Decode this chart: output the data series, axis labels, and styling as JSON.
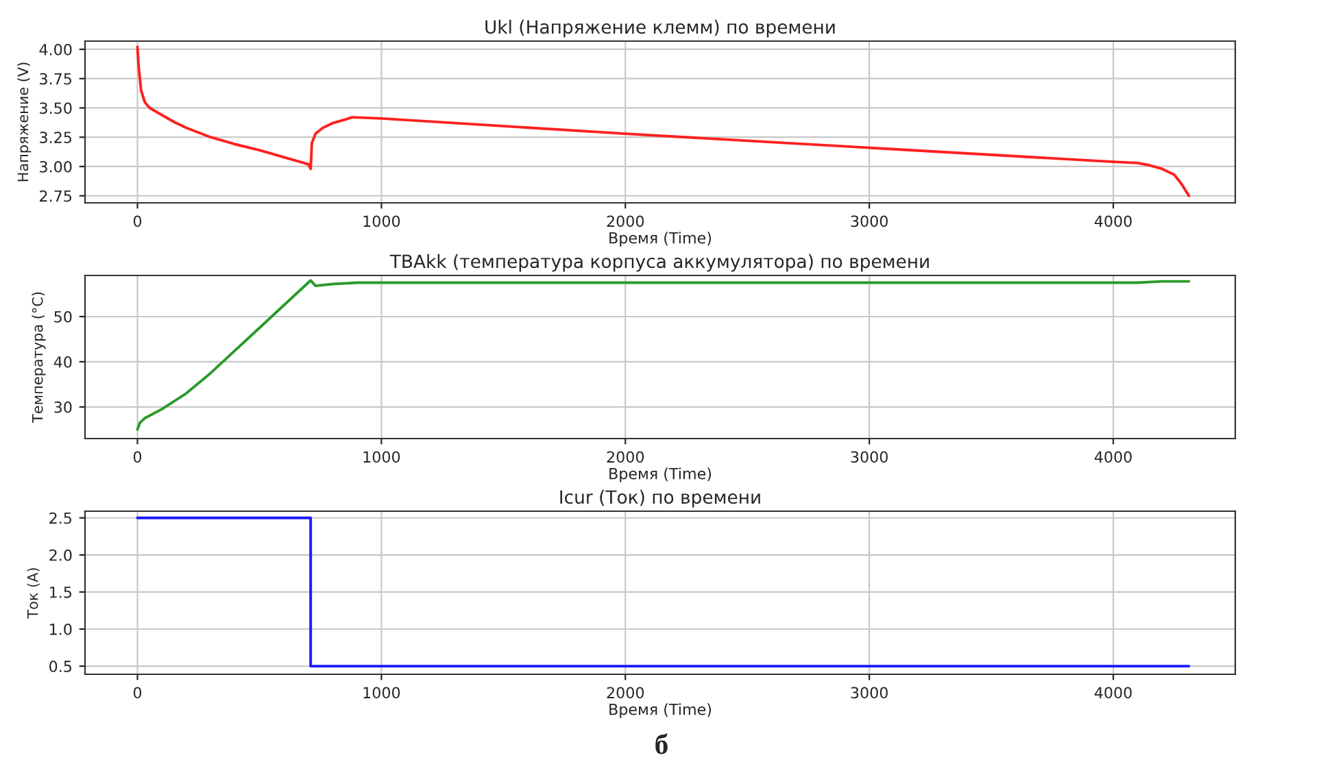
{
  "chart_data": [
    {
      "type": "line",
      "title": "Ukl (Напряжение клемм) по времени",
      "xlabel": "Время (Time)",
      "ylabel": "Напряжение (V)",
      "grid": true,
      "xlim": [
        -215,
        4500
      ],
      "xticks": [
        0,
        1000,
        2000,
        3000,
        4000
      ],
      "ylim": [
        2.69,
        4.07
      ],
      "yticks": [
        {
          "value": 2.75,
          "label": "2.75"
        },
        {
          "value": 3.0,
          "label": "3.00"
        },
        {
          "value": 3.25,
          "label": "3.25"
        },
        {
          "value": 3.5,
          "label": "3.50"
        },
        {
          "value": 3.75,
          "label": "3.75"
        },
        {
          "value": 4.0,
          "label": "4.00"
        }
      ],
      "series": [
        {
          "color": "#ff2020",
          "x": [
            0,
            5,
            15,
            30,
            50,
            100,
            150,
            200,
            300,
            400,
            500,
            600,
            700,
            710,
            715,
            730,
            760,
            800,
            850,
            880,
            1000,
            2000,
            3000,
            4000,
            4100,
            4150,
            4200,
            4250,
            4280,
            4310
          ],
          "values": [
            4.02,
            3.85,
            3.65,
            3.55,
            3.5,
            3.44,
            3.38,
            3.33,
            3.25,
            3.19,
            3.14,
            3.08,
            3.02,
            2.98,
            3.2,
            3.28,
            3.33,
            3.37,
            3.4,
            3.42,
            3.41,
            3.28,
            3.16,
            3.04,
            3.03,
            3.01,
            2.98,
            2.93,
            2.85,
            2.75
          ]
        }
      ]
    },
    {
      "type": "line",
      "title": "TBAkk (температура корпуса аккумулятора) по времени",
      "xlabel": "Время (Time)",
      "ylabel": "Температура (°C)",
      "grid": true,
      "xlim": [
        -215,
        4500
      ],
      "xticks": [
        0,
        1000,
        2000,
        3000,
        4000
      ],
      "ylim": [
        23,
        59.1
      ],
      "yticks": [
        30,
        40,
        50
      ],
      "series": [
        {
          "color": "#2a9a2a",
          "x": [
            0,
            10,
            30,
            100,
            200,
            300,
            400,
            500,
            600,
            700,
            710,
            730,
            800,
            900,
            4100,
            4200,
            4310
          ],
          "values": [
            25,
            26.5,
            27.5,
            29.5,
            33,
            37.5,
            42.5,
            47.5,
            52.5,
            57.5,
            58,
            56.8,
            57.2,
            57.5,
            57.5,
            57.8,
            57.8
          ]
        }
      ]
    },
    {
      "type": "line",
      "title": "Icur (Ток) по времени",
      "xlabel": "Время (Time)",
      "ylabel": "Ток (A)",
      "grid": true,
      "xlim": [
        -215,
        4500
      ],
      "xticks": [
        0,
        1000,
        2000,
        3000,
        4000
      ],
      "ylim": [
        0.39,
        2.59
      ],
      "yticks": [
        0.5,
        {
          "value": 1,
          "label": "1.0"
        },
        1.5,
        {
          "value": 2,
          "label": "2.0"
        },
        2.5
      ],
      "annotations": [
        "б"
      ],
      "series": [
        {
          "color": "#1a1aff",
          "x": [
            0,
            710,
            710,
            4310
          ],
          "values": [
            2.5,
            2.5,
            0.5,
            0.5
          ]
        }
      ]
    }
  ]
}
